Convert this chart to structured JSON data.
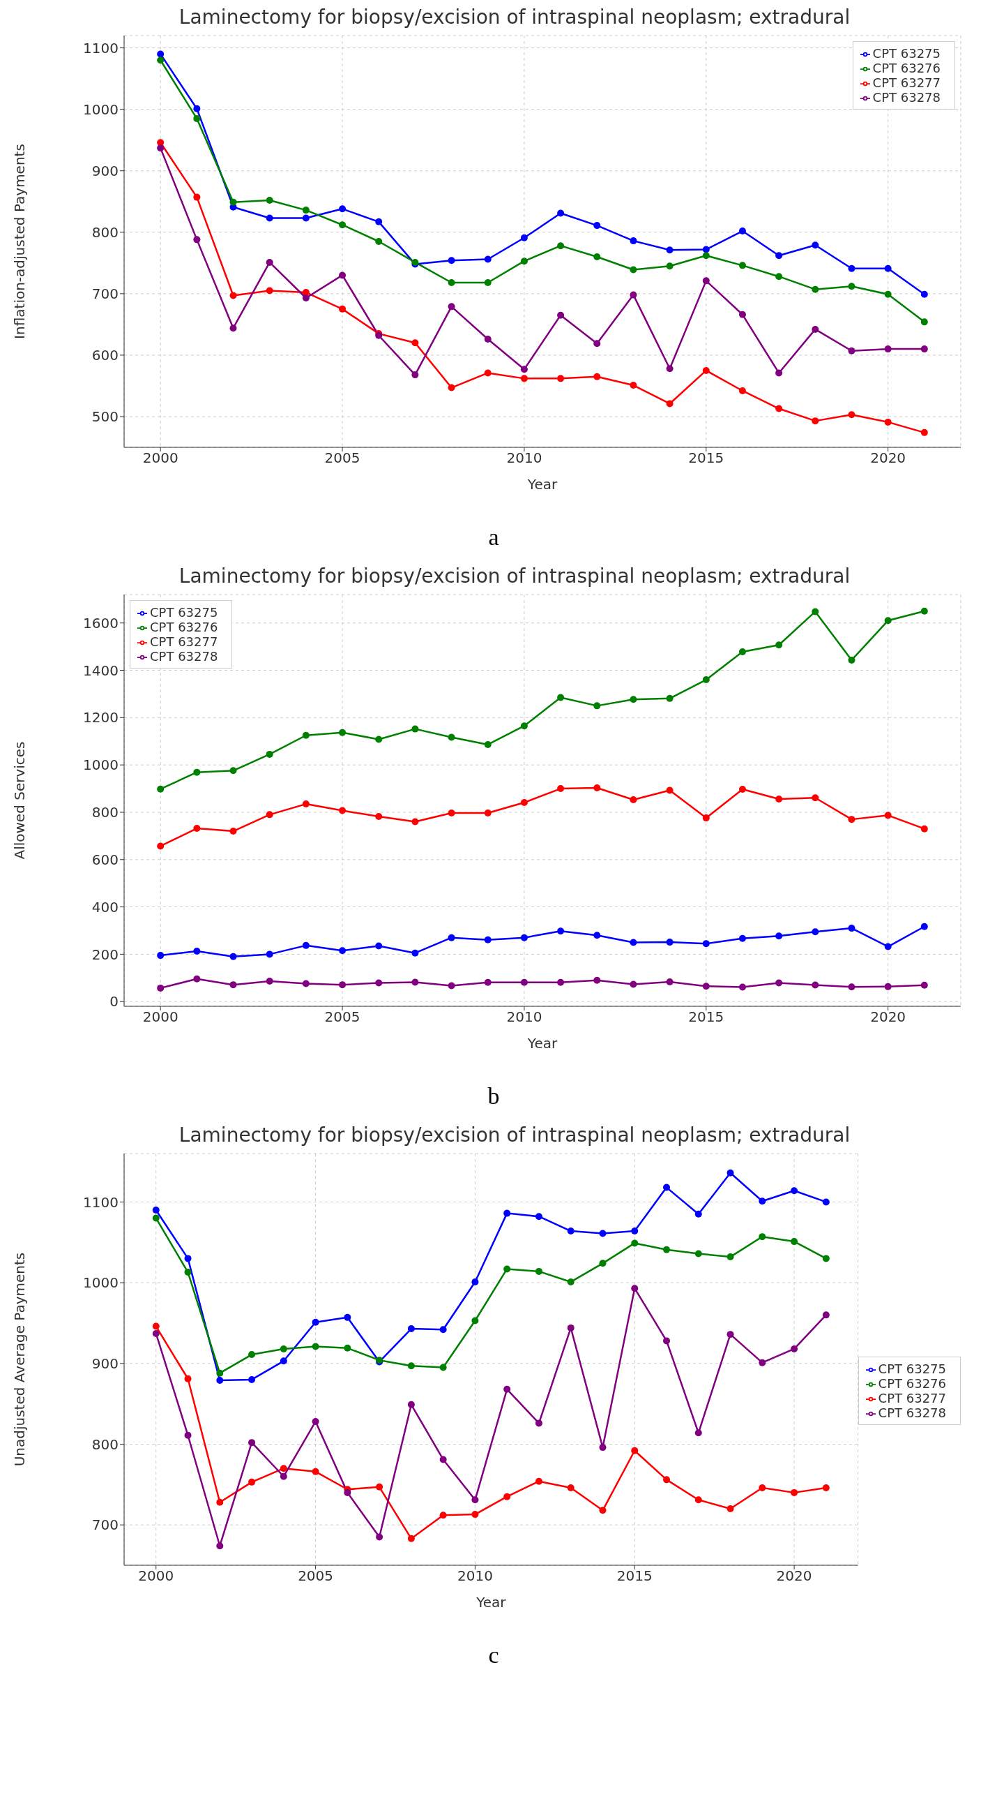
{
  "chart_data": [
    {
      "type": "line",
      "title": "Laminectomy for biopsy/excision of intraspinal neoplasm; extradural",
      "xlabel": "Year",
      "ylabel": "Inflation-adjusted Payments",
      "annotations": [
        "a"
      ],
      "x": [
        2000,
        2001,
        2002,
        2003,
        2004,
        2005,
        2006,
        2007,
        2008,
        2009,
        2010,
        2011,
        2012,
        2013,
        2014,
        2015,
        2016,
        2017,
        2018,
        2019,
        2020,
        2021
      ],
      "xlim": [
        1999,
        2022
      ],
      "xticks": [
        2000,
        2005,
        2010,
        2015,
        2020
      ],
      "ylim": [
        450,
        1120
      ],
      "yticks": [
        500,
        600,
        700,
        800,
        900,
        1000,
        1100
      ],
      "grid": true,
      "legend": "top right",
      "marker": "circle",
      "line_style": "solid",
      "series": [
        {
          "name": "CPT 63275",
          "color": "#0000ff",
          "values": [
            1090,
            1001,
            841,
            823,
            823,
            838,
            817,
            748,
            754,
            756,
            791,
            831,
            811,
            786,
            771,
            772,
            802,
            762,
            779,
            741,
            741,
            699
          ]
        },
        {
          "name": "CPT 63276",
          "color": "#008000",
          "values": [
            1080,
            985,
            849,
            852,
            836,
            812,
            785,
            751,
            718,
            718,
            753,
            778,
            760,
            739,
            745,
            762,
            746,
            728,
            707,
            712,
            699,
            654
          ]
        },
        {
          "name": "CPT 63277",
          "color": "#ff0000",
          "values": [
            946,
            857,
            697,
            705,
            702,
            675,
            635,
            620,
            547,
            571,
            562,
            562,
            565,
            551,
            521,
            575,
            542,
            513,
            493,
            503,
            491,
            474
          ]
        },
        {
          "name": "CPT 63278",
          "color": "#800080",
          "values": [
            937,
            788,
            644,
            751,
            693,
            730,
            632,
            568,
            679,
            626,
            577,
            665,
            619,
            698,
            578,
            721,
            666,
            571,
            642,
            607,
            610,
            610
          ]
        }
      ]
    },
    {
      "type": "line",
      "title": "Laminectomy for biopsy/excision of intraspinal neoplasm; extradural",
      "xlabel": "Year",
      "ylabel": "Allowed Services",
      "annotations": [
        "b"
      ],
      "x": [
        2000,
        2001,
        2002,
        2003,
        2004,
        2005,
        2006,
        2007,
        2008,
        2009,
        2010,
        2011,
        2012,
        2013,
        2014,
        2015,
        2016,
        2017,
        2018,
        2019,
        2020,
        2021
      ],
      "xlim": [
        1999,
        2022
      ],
      "xticks": [
        2000,
        2005,
        2010,
        2015,
        2020
      ],
      "ylim": [
        -20,
        1720
      ],
      "yticks": [
        0,
        200,
        400,
        600,
        800,
        1000,
        1200,
        1400,
        1600
      ],
      "grid": true,
      "legend": "top left",
      "marker": "circle",
      "line_style": "solid",
      "series": [
        {
          "name": "CPT 63275",
          "color": "#0000ff",
          "values": [
            195,
            213,
            190,
            200,
            237,
            215,
            235,
            205,
            270,
            261,
            270,
            298,
            280,
            250,
            251,
            245,
            267,
            277,
            295,
            310,
            232,
            317
          ]
        },
        {
          "name": "CPT 63276",
          "color": "#008000",
          "values": [
            898,
            969,
            976,
            1045,
            1125,
            1137,
            1108,
            1152,
            1117,
            1086,
            1165,
            1285,
            1250,
            1277,
            1281,
            1360,
            1478,
            1507,
            1648,
            1443,
            1610,
            1650
          ]
        },
        {
          "name": "CPT 63277",
          "color": "#ff0000",
          "values": [
            657,
            732,
            720,
            790,
            835,
            807,
            782,
            760,
            797,
            797,
            841,
            900,
            903,
            853,
            893,
            776,
            897,
            856,
            861,
            770,
            787,
            730
          ]
        },
        {
          "name": "CPT 63278",
          "color": "#800080",
          "values": [
            57,
            96,
            71,
            86,
            76,
            71,
            79,
            82,
            67,
            81,
            81,
            81,
            90,
            73,
            83,
            65,
            61,
            79,
            70,
            62,
            63,
            69
          ]
        }
      ]
    },
    {
      "type": "line",
      "title": "Laminectomy for biopsy/excision of intraspinal neoplasm; extradural",
      "xlabel": "Year",
      "ylabel": "Unadjusted Average Payments",
      "annotations": [
        "c"
      ],
      "x": [
        2000,
        2001,
        2002,
        2003,
        2004,
        2005,
        2006,
        2007,
        2008,
        2009,
        2010,
        2011,
        2012,
        2013,
        2014,
        2015,
        2016,
        2017,
        2018,
        2019,
        2020,
        2021
      ],
      "xlim": [
        1999,
        2022
      ],
      "xticks": [
        2000,
        2005,
        2010,
        2015,
        2020
      ],
      "ylim": [
        650,
        1160
      ],
      "yticks": [
        700,
        800,
        900,
        1000,
        1100
      ],
      "grid": true,
      "legend": "right",
      "marker": "circle",
      "line_style": "solid",
      "series": [
        {
          "name": "CPT 63275",
          "color": "#0000ff",
          "values": [
            1090,
            1030,
            879,
            880,
            903,
            951,
            957,
            902,
            943,
            942,
            1001,
            1086,
            1082,
            1064,
            1061,
            1064,
            1118,
            1085,
            1136,
            1101,
            1114,
            1100
          ]
        },
        {
          "name": "CPT 63276",
          "color": "#008000",
          "values": [
            1080,
            1013,
            888,
            911,
            918,
            921,
            919,
            904,
            897,
            895,
            953,
            1017,
            1014,
            1001,
            1024,
            1049,
            1041,
            1036,
            1032,
            1057,
            1051,
            1030
          ]
        },
        {
          "name": "CPT 63277",
          "color": "#ff0000",
          "values": [
            946,
            881,
            728,
            753,
            770,
            766,
            744,
            747,
            683,
            712,
            713,
            735,
            754,
            746,
            718,
            792,
            756,
            731,
            720,
            746,
            740,
            746
          ]
        },
        {
          "name": "CPT 63278",
          "color": "#800080",
          "values": [
            937,
            811,
            674,
            802,
            760,
            828,
            740,
            685,
            849,
            781,
            731,
            868,
            826,
            944,
            796,
            993,
            928,
            814,
            936,
            901,
            918,
            960
          ]
        }
      ]
    }
  ]
}
